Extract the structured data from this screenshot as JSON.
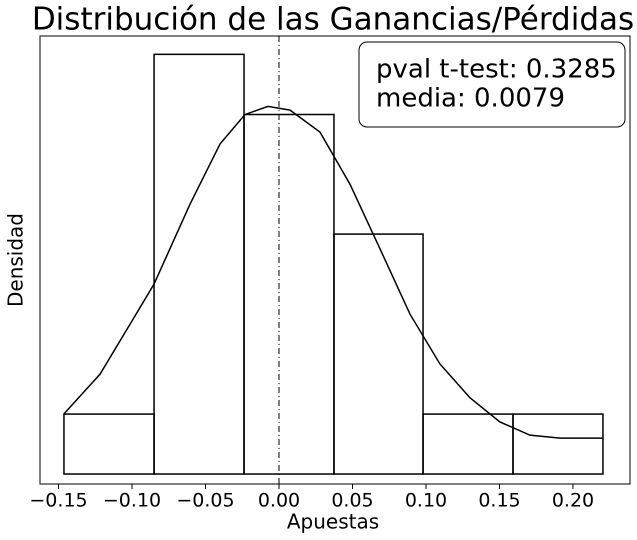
{
  "chart_data": {
    "type": "histogram",
    "title": "Distribución de las Ganancias/Pérdidas",
    "xlabel": "Apuestas",
    "ylabel": "Densidad",
    "bins": [
      -0.1463,
      -0.085,
      -0.0238,
      0.0374,
      0.098,
      0.1592,
      0.2204
    ],
    "values": [
      0.817,
      5.72,
      4.9,
      3.27,
      0.817,
      0.817
    ],
    "color": "#000000",
    "curve": {
      "x": [
        -0.1463,
        -0.1218,
        -0.1014,
        -0.085,
        -0.0605,
        -0.0401,
        -0.0231,
        -0.0075,
        0.0075,
        0.0279,
        0.0483,
        0.0687,
        0.0891,
        0.1095,
        0.1299,
        0.1503,
        0.1707,
        0.1912,
        0.2204
      ],
      "y": [
        0.82,
        1.36,
        2.04,
        2.59,
        3.68,
        4.5,
        4.9,
        5.01,
        4.96,
        4.66,
        3.95,
        3.07,
        2.18,
        1.5,
        1.04,
        0.71,
        0.53,
        0.49,
        0.49
      ]
    },
    "vline": 0,
    "annotation": [
      "pval t-test: 0.3285",
      "media: 0.0079"
    ],
    "xlim": [
      -0.1626,
      0.2388
    ],
    "ylim": [
      -0.136,
      5.97
    ],
    "xticks": [
      {
        "value": -0.15,
        "label": "−0.15"
      },
      {
        "value": -0.1,
        "label": "−0.10"
      },
      {
        "value": -0.05,
        "label": "−0.05"
      },
      {
        "value": 0,
        "label": "0.00"
      },
      0.05,
      {
        "value": 0.1,
        "label": "0.10"
      },
      0.15,
      {
        "value": 0.2,
        "label": "0.20"
      }
    ]
  }
}
